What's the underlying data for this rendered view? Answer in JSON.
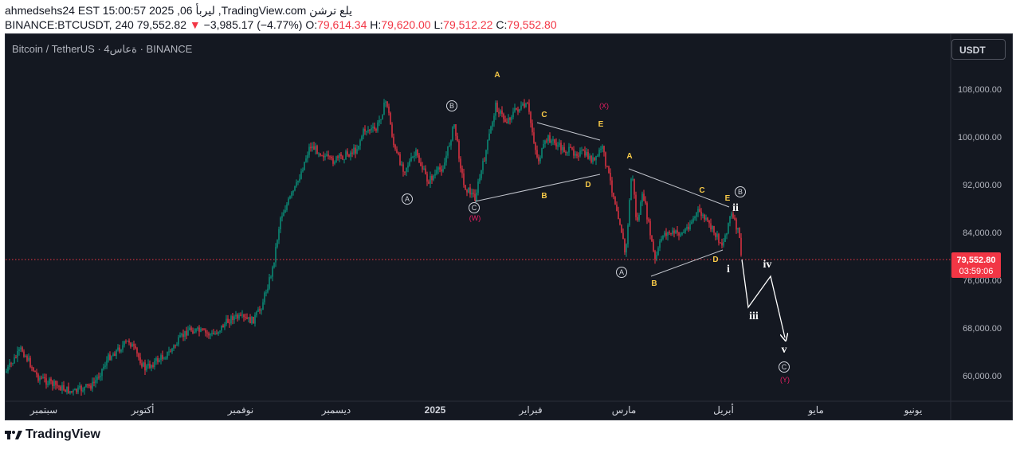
{
  "header": {
    "line1": "ahmedsehs24 EST 15:00:57 2025 ,06 ليربأ ,TradingView.com يلع ترشن",
    "symbol": "BINANCE:BTCUSDT, 240",
    "price": "79,552.82",
    "change_arrow": "▼",
    "change": "−3,985.17 (−4.77%)",
    "o_label": "O:",
    "o_value": "79,614.34",
    "h_label": "H:",
    "h_value": "79,620.00",
    "l_label": "L:",
    "l_value": "79,512.22",
    "c_label": "C:",
    "c_value": "79,552.80"
  },
  "chart": {
    "title": "Bitcoin / TetherUS · 4ةعاس · BINANCE",
    "unit_button": "USDT",
    "up_color": "#089981",
    "down_color": "#f23645",
    "price_axis": [
      "108,000.00",
      "100,000.00",
      "92,000.00",
      "84,000.00",
      "76,000.00",
      "68,000.00",
      "60,000.00"
    ],
    "time_axis": [
      "سبتمبر",
      "أكتوبر",
      "نوفمبر",
      "ديسمبر",
      "2025",
      "فبراير",
      "مارس",
      "أبريل",
      "مايو",
      "يونيو"
    ],
    "last_price": "79,552.80",
    "countdown": "03:59:06",
    "labels": {
      "circ_a1": "A",
      "circ_b1": "B",
      "circ_c1": "C",
      "w": "(W)",
      "a_top": "A",
      "c1": "C",
      "e1": "E",
      "x": "(X)",
      "b1": "B",
      "d1": "D",
      "a2": "A",
      "c2": "C",
      "e2": "E",
      "circ_b2": "B",
      "ii": "ii",
      "circ_a2": "A",
      "b2": "B",
      "d2": "D",
      "i": "i",
      "iv": "iv",
      "iii": "iii",
      "v": "v",
      "circ_c2": "C",
      "y": "(Y)"
    }
  },
  "footer": {
    "brand": "TradingView"
  }
}
